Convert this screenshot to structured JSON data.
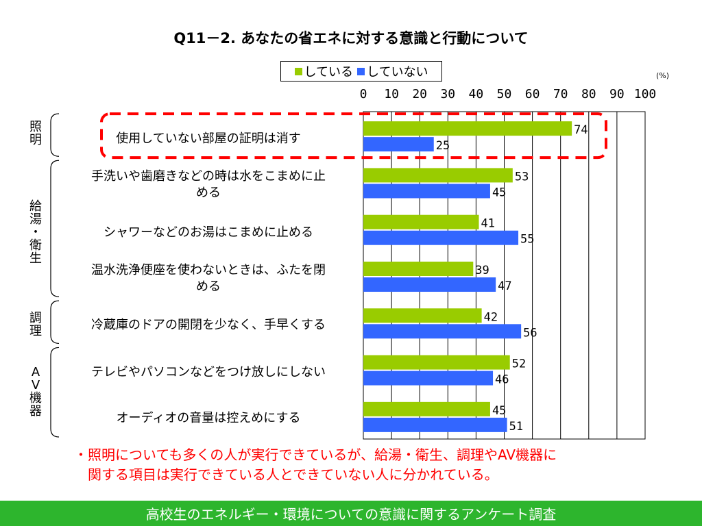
{
  "chart_data": {
    "type": "bar",
    "orientation": "horizontal",
    "title": "Q11－2. あなたの省エネに対する意識と行動について",
    "unit": "(%)",
    "xlim": [
      0,
      100
    ],
    "ticks": [
      "0",
      "10",
      "20",
      "30",
      "40",
      "50",
      "60",
      "70",
      "80",
      "90",
      "100"
    ],
    "legend_position": "top",
    "grid": true,
    "categories": [
      "使用していない部屋の証明は消す",
      "手洗いや歯磨きなどの時は水をこまめに止める",
      "シャワーなどのお湯はこまめに止める",
      "温水洗浄便座を使わないときは、ふたを閉める",
      "冷蔵庫のドアの開閉を少なく、手早くする",
      "テレビやパソコンなどをつけ放しにしない",
      "オーディオの音量は控えめにする"
    ],
    "series": [
      {
        "name": "している",
        "color": "#99cc00",
        "values": [
          74,
          53,
          41,
          39,
          42,
          52,
          45
        ]
      },
      {
        "name": "していない",
        "color": "#3366ff",
        "values": [
          25,
          45,
          55,
          47,
          56,
          46,
          51
        ]
      }
    ],
    "groups": [
      {
        "label": "照明",
        "categories": [
          0
        ]
      },
      {
        "label": "給湯・衛生",
        "categories": [
          1,
          2,
          3
        ]
      },
      {
        "label": "調理",
        "categories": [
          4
        ]
      },
      {
        "label": "AV機器",
        "categories": [
          5,
          6
        ]
      }
    ],
    "highlight_color": "#ff0000"
  },
  "labels_display": {
    "cat1_line1": "手洗いや歯磨きなどの時は水をこまめに止",
    "cat1_line2": "める",
    "cat3_line1": "温水洗浄便座を使わないときは、ふたを閉",
    "cat3_line2": "める",
    "group0": "照\n明",
    "group1": "給\n湯\n・\n衛\n生",
    "group2": "調\n理",
    "group3": "A\nV\n機\n器"
  },
  "note": {
    "line1": "・照明についても多くの人が実行できているが、給湯・衛生、調理やAV機器に",
    "line2": "関する項目は実行できている人とできていない人に分かれている。"
  },
  "footer": "高校生のエネルギー・環境についての意識に関するアンケート調査"
}
